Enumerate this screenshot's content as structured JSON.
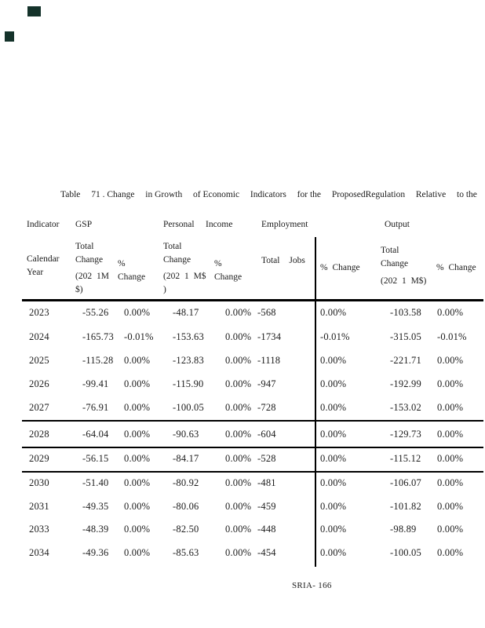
{
  "scan_marks": {
    "color": "#14322a",
    "count": 2
  },
  "title": {
    "parts": [
      "Table",
      "71 . Change",
      "in Growth",
      "of Economic",
      "Indicators",
      "for the",
      "ProposedRegulation",
      "Relative",
      "to the"
    ]
  },
  "table": {
    "header_groups": {
      "indicator": "Indicator",
      "gsp": "GSP",
      "personal": "Personal",
      "income": "Income",
      "employment": "Employment",
      "output": "Output"
    },
    "subheaders": {
      "calendar_year": "Calendar\nYear",
      "gsp_total_label": "Total\nChange",
      "gsp_total_units": "(202 1M\n$)",
      "gsp_pct": "%\nChange",
      "personal_total_label": "Total\nChange",
      "personal_total_units": "(202 1 M$\n)",
      "personal_pct": "%\nChange",
      "employment_total": "Total Jobs",
      "employment_pct": "% Change",
      "output_total_label": "Total\nChange",
      "output_total_units": "(202 1 M$)",
      "output_pct": "% Change"
    },
    "rows": [
      {
        "cells": [
          "2023",
          "-55.26",
          "0.00%",
          "-48.17",
          "0.00%",
          "-568",
          "0.00%",
          "-103.58",
          "0.00%"
        ]
      },
      {
        "cells": [
          "2024",
          "-165.73",
          "-0.01%",
          "-153.63",
          "0.00%",
          "-1734",
          "-0.01%",
          "-315.05",
          "-0.01%"
        ]
      },
      {
        "cells": [
          "2025",
          "-115.28",
          "0.00%",
          "-123.83",
          "0.00%",
          "-1118",
          "0.00%",
          "-221.71",
          "0.00%"
        ]
      },
      {
        "cells": [
          "2026",
          "-99.41",
          "0.00%",
          "-115.90",
          "0.00%",
          "-947",
          "0.00%",
          "-192.99",
          "0.00%"
        ]
      },
      {
        "cells": [
          "2027",
          "-76.91",
          "0.00%",
          "-100.05",
          "0.00%",
          "-728",
          "0.00%",
          "-153.02",
          "0.00%"
        ]
      },
      {
        "cells": [
          "2028",
          "-64.04",
          "0.00%",
          "-90.63",
          "0.00%",
          "-604",
          "0.00%",
          "-129.73",
          "0.00%"
        ]
      },
      {
        "cells": [
          "2029",
          "-56.15",
          "0.00%",
          "-84.17",
          "0.00%",
          "-528",
          "0.00%",
          "-115.12",
          "0.00%"
        ]
      },
      {
        "cells": [
          "2030",
          "-51.40",
          "0.00%",
          "-80.92",
          "0.00%",
          "-481",
          "0.00%",
          "-106.07",
          "0.00%"
        ]
      },
      {
        "cells": [
          "2031",
          "-49.35",
          "0.00%",
          "-80.06",
          "0.00%",
          "-459",
          "0.00%",
          "-101.82",
          "0.00%"
        ]
      },
      {
        "cells": [
          "2033",
          "-48.39",
          "0.00%",
          "-82.50",
          "0.00%",
          "-448",
          "0.00%",
          "-98.89",
          "0.00%"
        ]
      },
      {
        "cells": [
          "2034",
          "-49.36",
          "0.00%",
          "-85.63",
          "0.00%",
          "-454",
          "0.00%",
          "-100.05",
          "0.00%"
        ]
      }
    ]
  },
  "footer": {
    "page_label": "SRIA- 166"
  }
}
